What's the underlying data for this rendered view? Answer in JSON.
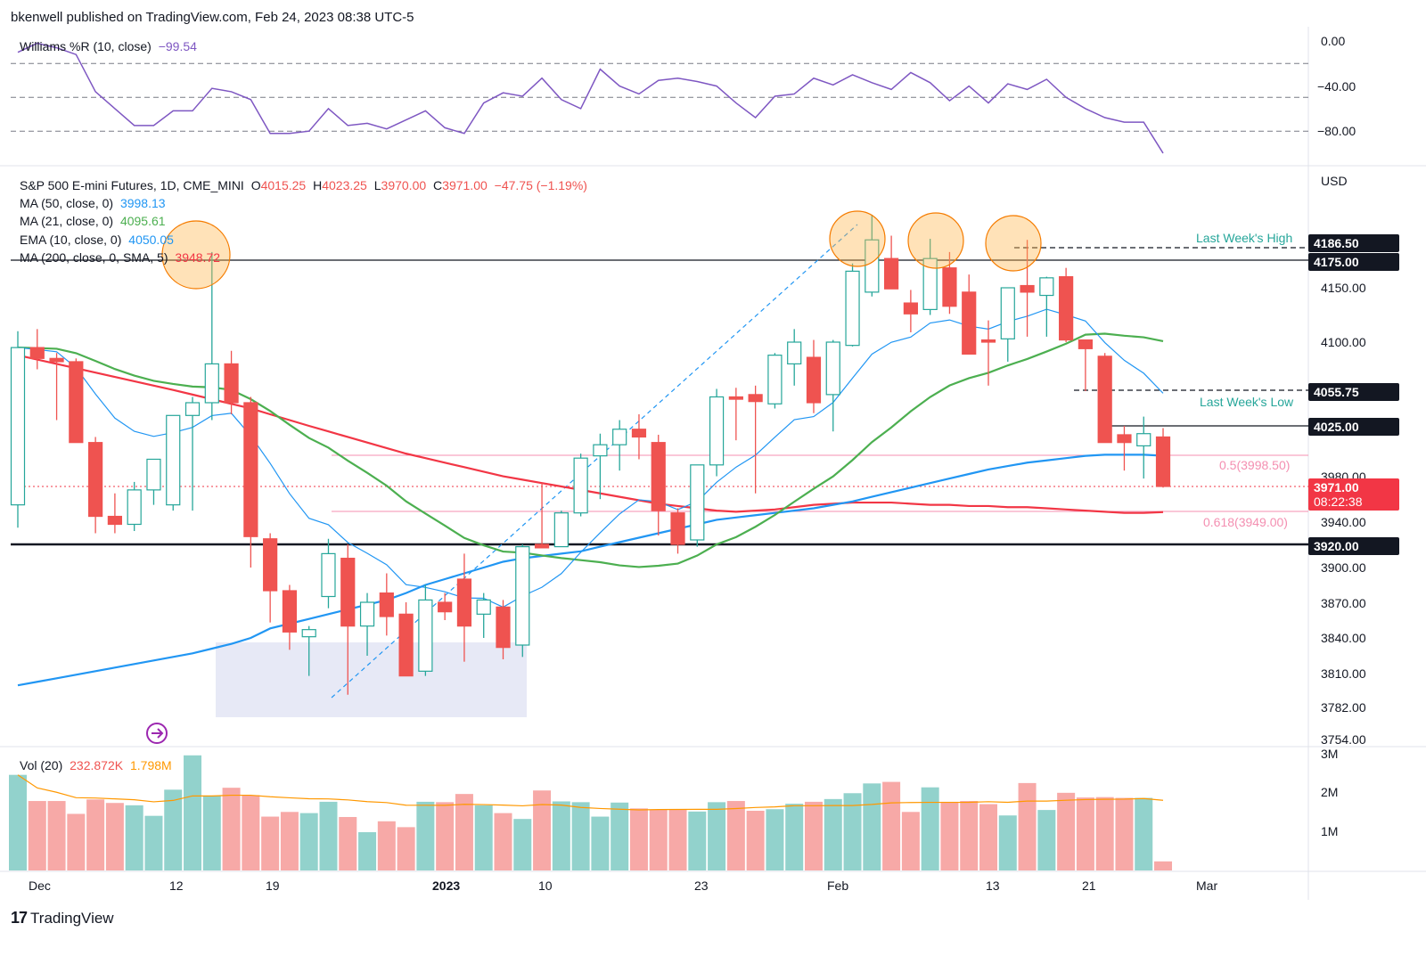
{
  "header": {
    "text": "bkenwell published on TradingView.com, Feb 24, 2023 08:38 UTC-5"
  },
  "footer": {
    "brand": "TradingView",
    "mark": "17"
  },
  "oscillator": {
    "label": "Williams %R (10, close)",
    "value": "−99.54",
    "ticks": [
      "0.00",
      "−40.00",
      "−80.00"
    ],
    "levels": [
      0,
      -20,
      -50,
      -80
    ]
  },
  "symbol": {
    "name": "S&P 500 E-mini Futures, 1D, CME_MINI",
    "o_label": "O",
    "o": "4015.25",
    "h_label": "H",
    "h": "4023.25",
    "l_label": "L",
    "l": "3970.00",
    "c_label": "C",
    "c": "3971.00",
    "change": "−47.75 (−1.19%)"
  },
  "indicators": [
    {
      "label": "MA (50, close, 0)",
      "value": "3998.13",
      "color": "#2196f3"
    },
    {
      "label": "MA (21, close, 0)",
      "value": "4095.61",
      "color": "#4caf50"
    },
    {
      "label": "EMA (10, close, 0)",
      "value": "4050.05",
      "color": "#2196f3"
    },
    {
      "label": "MA (200, close, 0, SMA, 5)",
      "value": "3948.72",
      "color": "#f23645"
    }
  ],
  "volume": {
    "label": "Vol (20)",
    "value": "232.872K",
    "ma": "1.798M",
    "ticks": [
      "3M",
      "2M",
      "1M"
    ]
  },
  "price_axis": {
    "currency": "USD",
    "ticks": [
      "4150.00",
      "4100.00",
      "3980.00",
      "3940.00",
      "3900.00",
      "3870.00",
      "3840.00",
      "3810.00",
      "3782.00",
      "3754.00"
    ]
  },
  "price_boxes": [
    {
      "value": "4186.50",
      "style": "black"
    },
    {
      "value": "4175.00",
      "style": "black"
    },
    {
      "value": "4055.75",
      "style": "black"
    },
    {
      "value": "4025.00",
      "style": "black"
    },
    {
      "value": "3920.00",
      "style": "black"
    },
    {
      "value": "3971.00",
      "time": "08:22:38",
      "style": "red"
    }
  ],
  "annotations": {
    "last_week_high": "Last Week's High",
    "last_week_low": "Last Week's Low",
    "fib_05": "0.5(3998.50)",
    "fib_0618": "0.618(3949.00)"
  },
  "time_axis": [
    "Dec",
    "12",
    "19",
    "2023",
    "10",
    "23",
    "Feb",
    "13",
    "21",
    "Mar"
  ],
  "colors": {
    "up": "#26a69a",
    "down": "#ef5350",
    "ma50": "#2196f3",
    "ma21": "#4caf50",
    "ema10": "#2196f3",
    "ma200": "#f23645",
    "willr": "#7e57c2",
    "fib": "#f48fb1"
  },
  "chart_data": [
    {
      "type": "candlestick",
      "title": "S&P 500 E-mini Futures, 1D, CME_MINI",
      "ylabel": "USD",
      "ylim": [
        3754,
        4240
      ],
      "candles": [
        {
          "o": 3955,
          "h": 4110,
          "l": 3935,
          "c": 4095
        },
        {
          "o": 4095,
          "h": 4112,
          "l": 4075,
          "c": 4085
        },
        {
          "o": 4085,
          "h": 4090,
          "l": 4030,
          "c": 4082
        },
        {
          "o": 4082,
          "h": 4085,
          "l": 4010,
          "c": 4010
        },
        {
          "o": 4010,
          "h": 4015,
          "l": 3930,
          "c": 3945
        },
        {
          "o": 3945,
          "h": 3965,
          "l": 3930,
          "c": 3938
        },
        {
          "o": 3938,
          "h": 3975,
          "l": 3932,
          "c": 3968
        },
        {
          "o": 3968,
          "h": 3995,
          "l": 3955,
          "c": 3995
        },
        {
          "o": 3955,
          "h": 4034,
          "l": 3950,
          "c": 4034
        },
        {
          "o": 4034,
          "h": 4050,
          "l": 3950,
          "c": 4045
        },
        {
          "o": 4045,
          "h": 4180,
          "l": 4030,
          "c": 4080
        },
        {
          "o": 4080,
          "h": 4092,
          "l": 4035,
          "c": 4045
        },
        {
          "o": 4045,
          "h": 4050,
          "l": 3900,
          "c": 3927
        },
        {
          "o": 3925,
          "h": 3930,
          "l": 3853,
          "c": 3880
        },
        {
          "o": 3880,
          "h": 3885,
          "l": 3830,
          "c": 3845
        },
        {
          "o": 3841,
          "h": 3850,
          "l": 3808,
          "c": 3847
        },
        {
          "o": 3875,
          "h": 3925,
          "l": 3865,
          "c": 3912
        },
        {
          "o": 3908,
          "h": 3920,
          "l": 3792,
          "c": 3850
        },
        {
          "o": 3850,
          "h": 3878,
          "l": 3825,
          "c": 3870
        },
        {
          "o": 3878,
          "h": 3895,
          "l": 3842,
          "c": 3858
        },
        {
          "o": 3860,
          "h": 3870,
          "l": 3808,
          "c": 3808
        },
        {
          "o": 3812,
          "h": 3885,
          "l": 3808,
          "c": 3872
        },
        {
          "o": 3870,
          "h": 3878,
          "l": 3855,
          "c": 3862
        },
        {
          "o": 3890,
          "h": 3912,
          "l": 3820,
          "c": 3850
        },
        {
          "o": 3860,
          "h": 3878,
          "l": 3840,
          "c": 3872
        },
        {
          "o": 3866,
          "h": 3872,
          "l": 3822,
          "c": 3832
        },
        {
          "o": 3834,
          "h": 3920,
          "l": 3824,
          "c": 3918
        },
        {
          "o": 3920,
          "h": 3974,
          "l": 3917,
          "c": 3917
        },
        {
          "o": 3918,
          "h": 3950,
          "l": 3918,
          "c": 3948
        },
        {
          "o": 3948,
          "h": 4000,
          "l": 3945,
          "c": 3996
        },
        {
          "o": 3998,
          "h": 4018,
          "l": 3960,
          "c": 4008
        },
        {
          "o": 4008,
          "h": 4030,
          "l": 3985,
          "c": 4022
        },
        {
          "o": 4022,
          "h": 4035,
          "l": 3995,
          "c": 4015
        },
        {
          "o": 4010,
          "h": 4017,
          "l": 3928,
          "c": 3950
        },
        {
          "o": 3948,
          "h": 3952,
          "l": 3912,
          "c": 3920
        },
        {
          "o": 3924,
          "h": 3990,
          "l": 3918,
          "c": 3990
        },
        {
          "o": 3990,
          "h": 4057,
          "l": 3980,
          "c": 4050
        },
        {
          "o": 4050,
          "h": 4058,
          "l": 4012,
          "c": 4048
        },
        {
          "o": 4052,
          "h": 4060,
          "l": 3965,
          "c": 4046
        },
        {
          "o": 4044,
          "h": 4090,
          "l": 4040,
          "c": 4088
        },
        {
          "o": 4080,
          "h": 4112,
          "l": 4060,
          "c": 4100
        },
        {
          "o": 4086,
          "h": 4102,
          "l": 4036,
          "c": 4045
        },
        {
          "o": 4052,
          "h": 4102,
          "l": 4020,
          "c": 4100
        },
        {
          "o": 4097,
          "h": 4172,
          "l": 4096,
          "c": 4165
        },
        {
          "o": 4146,
          "h": 4212,
          "l": 4142,
          "c": 4188
        },
        {
          "o": 4176,
          "h": 4192,
          "l": 4149,
          "c": 4149
        },
        {
          "o": 4136,
          "h": 4148,
          "l": 4109,
          "c": 4126
        },
        {
          "o": 4130,
          "h": 4189,
          "l": 4125,
          "c": 4176
        },
        {
          "o": 4168,
          "h": 4180,
          "l": 4126,
          "c": 4133
        },
        {
          "o": 4146,
          "h": 4162,
          "l": 4089,
          "c": 4089
        },
        {
          "o": 4102,
          "h": 4120,
          "l": 4060,
          "c": 4100
        },
        {
          "o": 4103,
          "h": 4150,
          "l": 4082,
          "c": 4150
        },
        {
          "o": 4152,
          "h": 4188,
          "l": 4105,
          "c": 4146
        },
        {
          "o": 4143,
          "h": 4160,
          "l": 4105,
          "c": 4159
        },
        {
          "o": 4160,
          "h": 4168,
          "l": 4100,
          "c": 4102
        },
        {
          "o": 4102,
          "h": 4098,
          "l": 4055,
          "c": 4094
        },
        {
          "o": 4087,
          "h": 4090,
          "l": 4010,
          "c": 4010
        },
        {
          "o": 4017,
          "h": 4025,
          "l": 3985,
          "c": 4010
        },
        {
          "o": 4007,
          "h": 4033,
          "l": 3978,
          "c": 4018
        },
        {
          "o": 4015,
          "h": 4023,
          "l": 3970,
          "c": 3971
        }
      ],
      "series": [
        {
          "name": "MA (200, close, 0, SMA, 5)",
          "values": [
            4088,
            4084,
            4080,
            4076,
            4072,
            4068,
            4064,
            4060,
            4056,
            4052,
            4048,
            4044,
            4040,
            4035,
            4030,
            4025,
            4020,
            4015,
            4010,
            4005,
            4000,
            3996,
            3992,
            3988,
            3984,
            3980,
            3977,
            3974,
            3971,
            3968,
            3965,
            3962,
            3959,
            3956,
            3954,
            3952,
            3950,
            3949,
            3950,
            3951,
            3953,
            3955,
            3956,
            3957,
            3957,
            3957,
            3956,
            3955,
            3955,
            3954,
            3954,
            3953,
            3953,
            3952,
            3951,
            3950,
            3949,
            3948,
            3948,
            3948.72
          ]
        },
        {
          "name": "MA (50, close, 0)",
          "values": [
            3800,
            3803,
            3806,
            3809,
            3812,
            3815,
            3818,
            3821,
            3824,
            3827,
            3831,
            3835,
            3840,
            3848,
            3852,
            3856,
            3860,
            3864,
            3868,
            3872,
            3878,
            3885,
            3890,
            3895,
            3900,
            3905,
            3908,
            3910,
            3912,
            3914,
            3918,
            3922,
            3926,
            3930,
            3934,
            3938,
            3942,
            3944,
            3946,
            3948,
            3950,
            3952,
            3955,
            3958,
            3962,
            3966,
            3970,
            3974,
            3978,
            3982,
            3986,
            3989,
            3992,
            3994,
            3996,
            3998,
            3999,
            3999,
            3999,
            3998.13
          ]
        }
      ],
      "events": [
        "Dec",
        "12",
        "19",
        "2023",
        "10",
        "23",
        "Feb",
        "13",
        "21",
        "Mar"
      ]
    },
    {
      "type": "line",
      "title": "Williams %R (10, close)",
      "ylim": [
        -100,
        0
      ],
      "series": [
        {
          "name": "Williams %R (10, close)",
          "values": [
            -10,
            -2,
            -6,
            -12,
            -45,
            -60,
            -75,
            -75,
            -62,
            -62,
            -42,
            -45,
            -52,
            -82,
            -82,
            -80,
            -60,
            -75,
            -73,
            -78,
            -70,
            -62,
            -77,
            -82,
            -55,
            -46,
            -49,
            -33,
            -52,
            -60,
            -25,
            -40,
            -47,
            -35,
            -33,
            -36,
            -40,
            -55,
            -68,
            -49,
            -47,
            -33,
            -39,
            -30,
            -37,
            -43,
            -28,
            -37,
            -53,
            -40,
            -55,
            -38,
            -43,
            -34,
            -50,
            -60,
            -68,
            -72,
            -72,
            -99.54
          ]
        }
      ]
    },
    {
      "type": "bar",
      "title": "Vol (20)",
      "ylim": [
        0,
        3000000
      ],
      "values": [
        2450000,
        1780000,
        1780000,
        1450000,
        1820000,
        1730000,
        1670000,
        1400000,
        2070000,
        2950000,
        1910000,
        2120000,
        1930000,
        1380000,
        1500000,
        1470000,
        1760000,
        1370000,
        981000,
        1260000,
        1110000,
        1760000,
        1750000,
        1960000,
        1670000,
        1470000,
        1320000,
        2050000,
        1770000,
        1750000,
        1380000,
        1740000,
        1590000,
        1560000,
        1570000,
        1510000,
        1750000,
        1780000,
        1530000,
        1570000,
        1710000,
        1760000,
        1830000,
        1980000,
        2230000,
        2270000,
        1500000,
        2130000,
        1760000,
        1780000,
        1700000,
        1410000,
        2240000,
        1550000,
        1990000,
        1870000,
        1880000,
        1860000,
        1860000,
        232872
      ]
    }
  ]
}
